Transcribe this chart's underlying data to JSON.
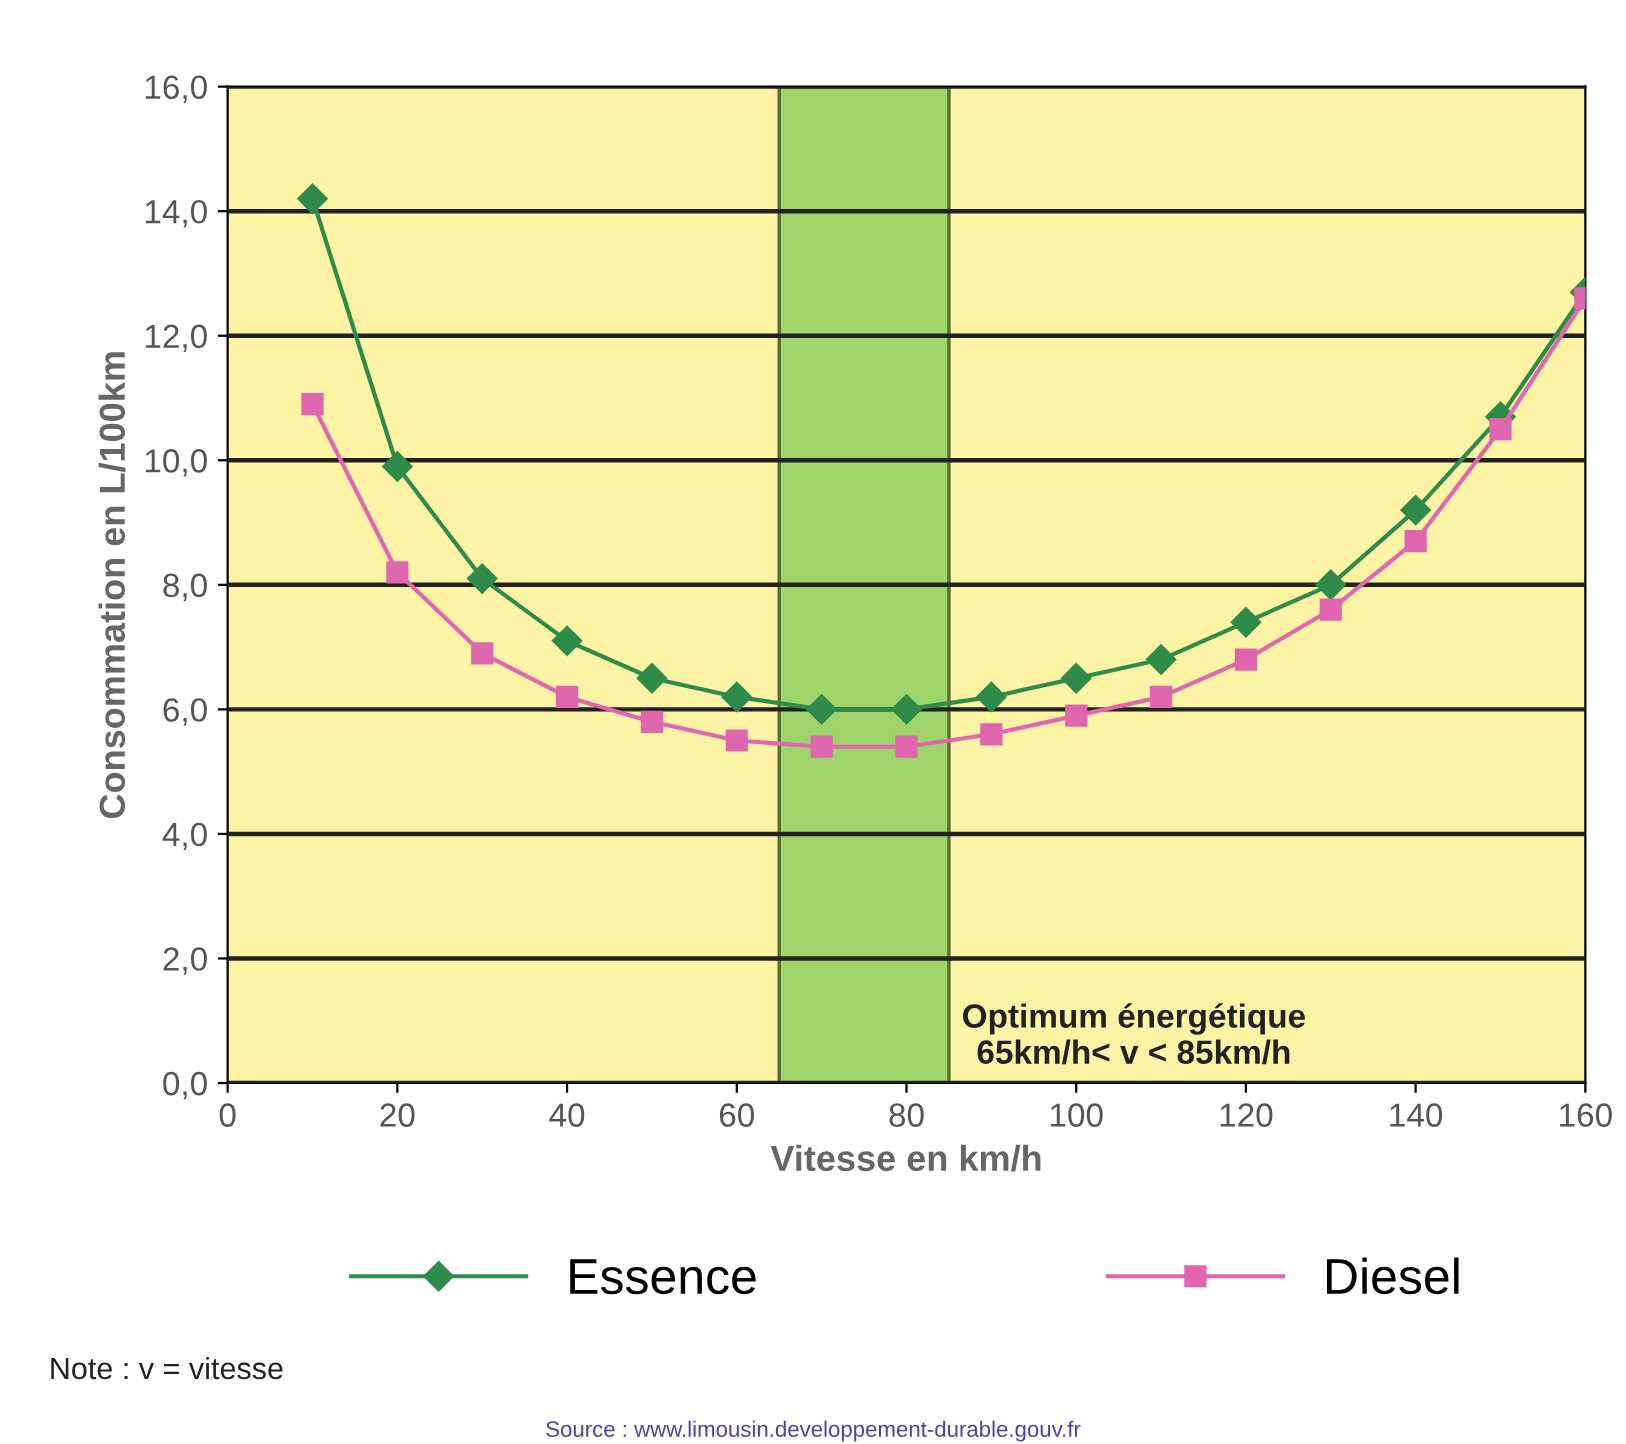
{
  "chart_data": {
    "type": "line",
    "xlabel": "Vitesse en km/h",
    "ylabel": "Consommation en L/100km",
    "x": [
      10,
      20,
      30,
      40,
      50,
      60,
      70,
      80,
      90,
      100,
      110,
      120,
      130,
      140,
      150,
      160
    ],
    "series": [
      {
        "name": "Essence",
        "color": "#2e8b4a",
        "marker": "diamond",
        "values": [
          14.2,
          9.9,
          8.1,
          7.1,
          6.5,
          6.2,
          6.0,
          6.0,
          6.2,
          6.5,
          6.8,
          7.4,
          8.0,
          9.2,
          10.7,
          12.7
        ]
      },
      {
        "name": "Diesel",
        "color": "#e066b0",
        "marker": "square",
        "values": [
          10.9,
          8.2,
          6.9,
          6.2,
          5.8,
          5.5,
          5.4,
          5.4,
          5.6,
          5.9,
          6.2,
          6.8,
          7.6,
          8.7,
          10.5,
          12.6
        ]
      }
    ],
    "xlim": [
      0,
      160
    ],
    "xticks": [
      0,
      20,
      40,
      60,
      80,
      100,
      120,
      140,
      160
    ],
    "ylim": [
      0,
      16
    ],
    "yticks": [
      {
        "value": 0,
        "label": "0,0"
      },
      {
        "value": 2,
        "label": "2,0"
      },
      {
        "value": 4,
        "label": "4,0"
      },
      {
        "value": 6,
        "label": "6,0"
      },
      {
        "value": 8,
        "label": "8,0"
      },
      {
        "value": 10,
        "label": "10,0"
      },
      {
        "value": 12,
        "label": "12,0"
      },
      {
        "value": 14,
        "label": "14,0"
      },
      {
        "value": 16,
        "label": "16,0"
      }
    ],
    "bands": [
      {
        "axis": "x",
        "from": 65,
        "to": 85,
        "label": "Optimum énergétique\n65km/h< v < 85km/h",
        "color": "#9fd46a"
      }
    ],
    "grid": "y",
    "legend": "bottom",
    "line_style": "solid",
    "annotations": [
      "Note : v = vitesse",
      "Source : www.limousin.developpement-durable.gouv.fr"
    ]
  }
}
